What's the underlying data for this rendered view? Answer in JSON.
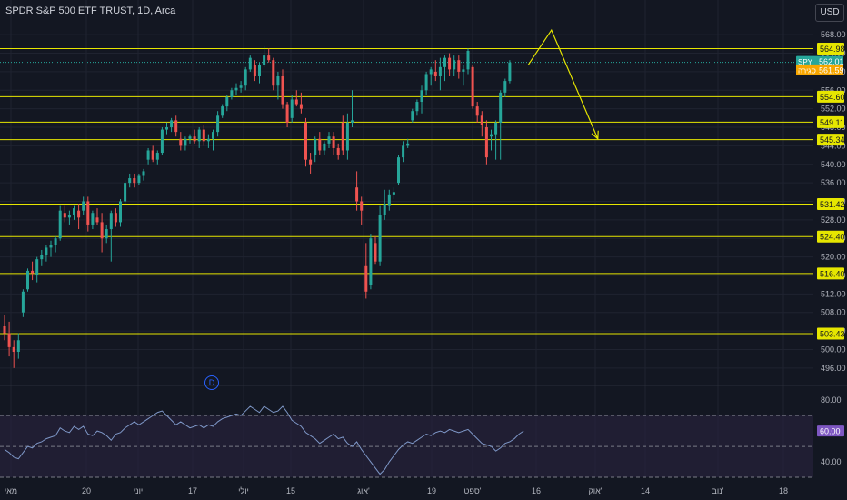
{
  "header": {
    "title": "SPDR S&P 500 ETF TRUST, 1D, Arca",
    "currency": "USD",
    "event_badge": "D"
  },
  "colors": {
    "background": "#131722",
    "up": "#26a69a",
    "down": "#ef5350",
    "level_line": "#e6e600",
    "arrow": "#e6e600",
    "rsi_line": "#7e97c7",
    "rsi_band": "#2a2340"
  },
  "chart_data": [
    {
      "type": "candlestick",
      "title": "SPDR S&P 500 ETF TRUST, 1D, Arca",
      "ylim": [
        494,
        570
      ],
      "y_ticks": [
        496,
        500,
        504,
        508,
        512,
        516,
        520,
        524,
        528,
        532,
        536,
        540,
        544,
        548,
        552,
        556,
        560,
        564,
        568
      ],
      "x_tick_labels": [
        "מאי",
        "20",
        "יוני",
        "17",
        "יולי",
        "15",
        "אוג'",
        "19",
        "ספט'",
        "16",
        "אוק'",
        "14",
        "נוב'",
        "18"
      ],
      "candles": [
        {
          "o": 505.0,
          "h": 507.5,
          "l": 502.0,
          "c": 503.5
        },
        {
          "o": 503.5,
          "h": 506.0,
          "l": 498.5,
          "c": 500.5
        },
        {
          "o": 500.5,
          "h": 502.0,
          "l": 496.0,
          "c": 499.5
        },
        {
          "o": 499.5,
          "h": 503.5,
          "l": 498.0,
          "c": 502.0
        },
        {
          "o": 508.0,
          "h": 513.0,
          "l": 507.0,
          "c": 512.5
        },
        {
          "o": 513.0,
          "h": 517.5,
          "l": 512.5,
          "c": 517.0
        },
        {
          "o": 517.0,
          "h": 519.0,
          "l": 515.0,
          "c": 516.5
        },
        {
          "o": 516.0,
          "h": 520.0,
          "l": 514.5,
          "c": 519.5
        },
        {
          "o": 519.5,
          "h": 521.5,
          "l": 518.0,
          "c": 520.5
        },
        {
          "o": 520.5,
          "h": 522.5,
          "l": 519.0,
          "c": 522.0
        },
        {
          "o": 522.0,
          "h": 523.5,
          "l": 520.0,
          "c": 522.5
        },
        {
          "o": 522.5,
          "h": 524.5,
          "l": 521.0,
          "c": 524.0
        },
        {
          "o": 524.0,
          "h": 531.0,
          "l": 523.5,
          "c": 530.0
        },
        {
          "o": 529.5,
          "h": 531.0,
          "l": 527.5,
          "c": 528.5
        },
        {
          "o": 528.5,
          "h": 530.0,
          "l": 527.0,
          "c": 529.0
        },
        {
          "o": 529.0,
          "h": 531.0,
          "l": 528.0,
          "c": 530.5
        },
        {
          "o": 530.0,
          "h": 531.5,
          "l": 526.0,
          "c": 528.5
        },
        {
          "o": 530.0,
          "h": 533.0,
          "l": 529.0,
          "c": 532.0
        },
        {
          "o": 532.0,
          "h": 533.0,
          "l": 525.5,
          "c": 527.0
        },
        {
          "o": 527.0,
          "h": 530.0,
          "l": 526.0,
          "c": 529.5
        },
        {
          "o": 528.5,
          "h": 530.5,
          "l": 527.0,
          "c": 527.5
        },
        {
          "o": 527.5,
          "h": 529.5,
          "l": 521.0,
          "c": 524.0
        },
        {
          "o": 524.0,
          "h": 527.0,
          "l": 523.0,
          "c": 526.0
        },
        {
          "o": 526.0,
          "h": 530.0,
          "l": 519.0,
          "c": 529.5
        },
        {
          "o": 529.5,
          "h": 530.5,
          "l": 526.5,
          "c": 527.5
        },
        {
          "o": 527.5,
          "h": 532.5,
          "l": 526.5,
          "c": 532.0
        },
        {
          "o": 532.0,
          "h": 536.5,
          "l": 531.5,
          "c": 536.0
        },
        {
          "o": 536.0,
          "h": 538.0,
          "l": 535.0,
          "c": 537.0
        },
        {
          "o": 537.0,
          "h": 538.0,
          "l": 535.0,
          "c": 536.0
        },
        {
          "o": 536.0,
          "h": 538.0,
          "l": 535.5,
          "c": 537.5
        },
        {
          "o": 537.5,
          "h": 539.0,
          "l": 536.5,
          "c": 538.5
        },
        {
          "o": 541.0,
          "h": 543.5,
          "l": 540.0,
          "c": 543.0
        },
        {
          "o": 543.0,
          "h": 544.0,
          "l": 540.5,
          "c": 541.0
        },
        {
          "o": 541.0,
          "h": 543.0,
          "l": 540.0,
          "c": 542.5
        },
        {
          "o": 542.5,
          "h": 548.0,
          "l": 542.0,
          "c": 547.5
        },
        {
          "o": 547.5,
          "h": 549.0,
          "l": 546.5,
          "c": 548.0
        },
        {
          "o": 548.0,
          "h": 550.0,
          "l": 547.0,
          "c": 549.5
        },
        {
          "o": 549.5,
          "h": 550.5,
          "l": 546.0,
          "c": 547.0
        },
        {
          "o": 545.5,
          "h": 547.0,
          "l": 543.0,
          "c": 544.0
        },
        {
          "o": 544.0,
          "h": 546.0,
          "l": 543.0,
          "c": 545.5
        },
        {
          "o": 545.5,
          "h": 546.5,
          "l": 544.5,
          "c": 546.0
        },
        {
          "o": 546.0,
          "h": 547.5,
          "l": 544.5,
          "c": 545.0
        },
        {
          "o": 545.0,
          "h": 548.0,
          "l": 543.5,
          "c": 547.5
        },
        {
          "o": 547.5,
          "h": 548.5,
          "l": 544.0,
          "c": 545.0
        },
        {
          "o": 545.0,
          "h": 546.5,
          "l": 543.5,
          "c": 545.5
        },
        {
          "o": 545.5,
          "h": 547.5,
          "l": 543.0,
          "c": 547.0
        },
        {
          "o": 547.0,
          "h": 551.5,
          "l": 546.0,
          "c": 550.5
        },
        {
          "o": 550.5,
          "h": 553.0,
          "l": 550.0,
          "c": 552.5
        },
        {
          "o": 552.5,
          "h": 555.0,
          "l": 551.5,
          "c": 554.5
        },
        {
          "o": 554.5,
          "h": 556.5,
          "l": 554.0,
          "c": 556.0
        },
        {
          "o": 556.0,
          "h": 557.5,
          "l": 555.0,
          "c": 556.5
        },
        {
          "o": 556.5,
          "h": 558.0,
          "l": 555.5,
          "c": 557.0
        },
        {
          "o": 557.0,
          "h": 561.0,
          "l": 556.0,
          "c": 560.5
        },
        {
          "o": 560.5,
          "h": 563.5,
          "l": 560.0,
          "c": 563.0
        },
        {
          "o": 561.5,
          "h": 562.5,
          "l": 558.0,
          "c": 559.0
        },
        {
          "o": 559.0,
          "h": 562.0,
          "l": 557.5,
          "c": 561.5
        },
        {
          "o": 561.5,
          "h": 565.5,
          "l": 561.0,
          "c": 563.5
        },
        {
          "o": 563.5,
          "h": 565.0,
          "l": 562.0,
          "c": 562.5
        },
        {
          "o": 562.5,
          "h": 563.0,
          "l": 556.0,
          "c": 557.0
        },
        {
          "o": 557.0,
          "h": 560.0,
          "l": 554.0,
          "c": 559.0
        },
        {
          "o": 559.0,
          "h": 560.5,
          "l": 552.0,
          "c": 553.0
        },
        {
          "o": 553.0,
          "h": 553.5,
          "l": 548.0,
          "c": 549.0
        },
        {
          "o": 550.0,
          "h": 555.0,
          "l": 549.0,
          "c": 554.0
        },
        {
          "o": 554.0,
          "h": 556.0,
          "l": 552.5,
          "c": 553.0
        },
        {
          "o": 553.0,
          "h": 555.5,
          "l": 551.0,
          "c": 552.0
        },
        {
          "o": 549.0,
          "h": 550.0,
          "l": 539.5,
          "c": 541.0
        },
        {
          "o": 541.0,
          "h": 542.5,
          "l": 538.0,
          "c": 540.0
        },
        {
          "o": 542.0,
          "h": 546.0,
          "l": 540.5,
          "c": 545.5
        },
        {
          "o": 545.5,
          "h": 547.0,
          "l": 542.0,
          "c": 543.0
        },
        {
          "o": 543.0,
          "h": 545.0,
          "l": 542.0,
          "c": 544.5
        },
        {
          "o": 544.5,
          "h": 547.0,
          "l": 543.5,
          "c": 546.0
        },
        {
          "o": 546.0,
          "h": 547.0,
          "l": 542.0,
          "c": 543.5
        },
        {
          "o": 543.5,
          "h": 544.5,
          "l": 541.0,
          "c": 542.0
        },
        {
          "o": 549.0,
          "h": 550.5,
          "l": 542.0,
          "c": 543.0
        },
        {
          "o": 543.0,
          "h": 551.0,
          "l": 541.0,
          "c": 549.0
        },
        {
          "o": 549.0,
          "h": 556.0,
          "l": 548.0,
          "c": 549.5
        },
        {
          "o": 535.0,
          "h": 538.5,
          "l": 530.0,
          "c": 532.0
        },
        {
          "o": 532.0,
          "h": 533.0,
          "l": 527.0,
          "c": 530.0
        },
        {
          "o": 518.0,
          "h": 523.0,
          "l": 511.0,
          "c": 512.5
        },
        {
          "o": 514.0,
          "h": 525.0,
          "l": 513.0,
          "c": 524.0
        },
        {
          "o": 523.0,
          "h": 524.5,
          "l": 518.5,
          "c": 519.0
        },
        {
          "o": 519.0,
          "h": 531.0,
          "l": 518.0,
          "c": 529.0
        },
        {
          "o": 529.0,
          "h": 534.5,
          "l": 528.0,
          "c": 531.5
        },
        {
          "o": 531.0,
          "h": 534.5,
          "l": 530.0,
          "c": 533.5
        },
        {
          "o": 533.5,
          "h": 535.0,
          "l": 532.5,
          "c": 534.0
        },
        {
          "o": 536.0,
          "h": 542.0,
          "l": 535.5,
          "c": 541.5
        },
        {
          "o": 541.5,
          "h": 545.0,
          "l": 540.5,
          "c": 544.0
        },
        {
          "o": 544.0,
          "h": 545.5,
          "l": 543.5,
          "c": 544.5
        },
        {
          "o": 549.5,
          "h": 552.0,
          "l": 549.0,
          "c": 551.5
        },
        {
          "o": 551.5,
          "h": 554.0,
          "l": 550.5,
          "c": 553.5
        },
        {
          "o": 553.5,
          "h": 557.0,
          "l": 551.0,
          "c": 556.0
        },
        {
          "o": 556.0,
          "h": 560.0,
          "l": 555.0,
          "c": 559.5
        },
        {
          "o": 559.5,
          "h": 561.0,
          "l": 557.0,
          "c": 560.5
        },
        {
          "o": 560.0,
          "h": 562.5,
          "l": 558.0,
          "c": 559.0
        },
        {
          "o": 559.0,
          "h": 563.0,
          "l": 556.0,
          "c": 561.0
        },
        {
          "o": 561.0,
          "h": 563.5,
          "l": 558.0,
          "c": 563.0
        },
        {
          "o": 563.0,
          "h": 564.0,
          "l": 559.0,
          "c": 560.5
        },
        {
          "o": 560.5,
          "h": 563.5,
          "l": 559.0,
          "c": 562.5
        },
        {
          "o": 562.5,
          "h": 563.5,
          "l": 558.5,
          "c": 560.0
        },
        {
          "o": 560.0,
          "h": 561.5,
          "l": 557.0,
          "c": 560.5
        },
        {
          "o": 560.5,
          "h": 565.0,
          "l": 559.5,
          "c": 564.5
        },
        {
          "o": 561.0,
          "h": 561.5,
          "l": 552.0,
          "c": 552.5
        },
        {
          "o": 552.5,
          "h": 553.5,
          "l": 549.0,
          "c": 550.5
        },
        {
          "o": 550.5,
          "h": 551.5,
          "l": 546.0,
          "c": 548.5
        },
        {
          "o": 548.0,
          "h": 549.5,
          "l": 540.0,
          "c": 541.5
        },
        {
          "o": 546.0,
          "h": 547.5,
          "l": 543.0,
          "c": 546.5
        },
        {
          "o": 546.5,
          "h": 549.5,
          "l": 541.0,
          "c": 549.0
        },
        {
          "o": 549.0,
          "h": 556.0,
          "l": 541.0,
          "c": 555.5
        },
        {
          "o": 555.5,
          "h": 558.5,
          "l": 554.5,
          "c": 558.0
        },
        {
          "o": 558.0,
          "h": 562.5,
          "l": 557.5,
          "c": 562.0
        }
      ],
      "levels": [
        {
          "value": 564.98,
          "label": "564.98"
        },
        {
          "value": 554.6,
          "label": "554.60"
        },
        {
          "value": 549.11,
          "label": "549.11"
        },
        {
          "value": 545.34,
          "label": "545.34"
        },
        {
          "value": 531.42,
          "label": "531.42"
        },
        {
          "value": 524.4,
          "label": "524.40"
        },
        {
          "value": 516.4,
          "label": "516.40"
        },
        {
          "value": 503.43,
          "label": "503.43"
        }
      ],
      "price_tags": [
        {
          "ticker": "SPY",
          "value": 562.01,
          "label": "562.01",
          "color": "#26a69a"
        },
        {
          "ticker": "סגירה",
          "value": 561.59,
          "label": "561.59",
          "color": "#f7a600"
        }
      ],
      "arrow_path": [
        {
          "bar": 113,
          "price": 561.5
        },
        {
          "bar": 118,
          "price": 569.0
        },
        {
          "bar": 128,
          "price": 545.5
        }
      ]
    },
    {
      "type": "line",
      "series": [
        {
          "values": [
            48,
            46,
            43,
            42,
            46,
            50,
            49,
            52,
            53,
            55,
            56,
            57,
            62,
            60,
            59,
            63,
            61,
            63,
            58,
            57,
            60,
            59,
            57,
            54,
            58,
            59,
            62,
            64,
            66,
            64,
            66,
            68,
            70,
            72,
            73,
            70,
            67,
            64,
            66,
            64,
            62,
            63,
            64,
            62,
            64,
            63,
            66,
            68,
            69,
            70,
            71,
            70,
            73,
            76,
            74,
            72,
            76,
            74,
            72,
            73,
            76,
            72,
            67,
            65,
            63,
            59,
            57,
            55,
            52,
            54,
            56,
            58,
            55,
            56,
            52,
            50,
            53,
            48,
            44,
            40,
            36,
            32,
            35,
            40,
            44,
            48,
            51,
            53,
            52,
            54,
            56,
            58,
            57,
            59,
            60,
            59,
            61,
            60,
            59,
            60,
            61,
            58,
            55,
            52,
            51,
            50,
            47,
            49,
            52,
            53,
            55,
            58,
            60
          ]
        }
      ],
      "ylim": [
        30,
        86
      ],
      "y_ticks": [
        40.0,
        60.0,
        80.0
      ],
      "y_tick_labels": [
        "40.00",
        "60.00",
        "80.00"
      ],
      "bands": {
        "upper": 70,
        "middle": 50,
        "lower": 30
      }
    }
  ]
}
